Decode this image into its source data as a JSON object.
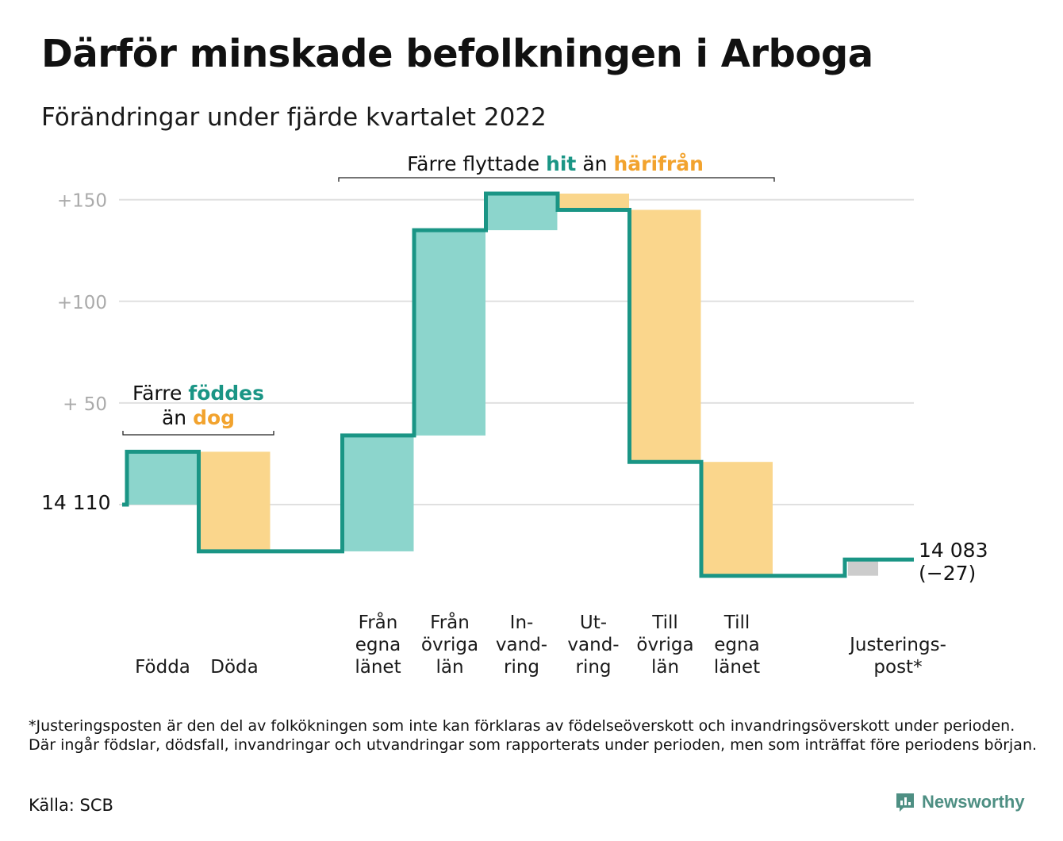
{
  "title": "Därför minskade befolkningen i Arboga",
  "subtitle": "Förändringar under fjärde kvartalet 2022",
  "colors": {
    "increase_fill": "#8cd5cc",
    "decrease_fill": "#fad68c",
    "adjustment_fill": "#cccccc",
    "line": "#1a9585",
    "teal_text": "#1a9585",
    "orange_text": "#f2a32e",
    "grid": "#e0e0e0",
    "tick_text": "#aaaaaa"
  },
  "chart_data": {
    "type": "waterfall",
    "start_value": 14110,
    "start_label": "14 110",
    "end_label": "14 083",
    "end_change_label": "(−27)",
    "y_tick_labels": [
      "+150",
      "+100",
      "+ 50"
    ],
    "y_ticks": [
      150,
      100,
      50
    ],
    "ylim": [
      -40,
      150
    ],
    "steps": [
      {
        "category": [
          "Födda"
        ],
        "change": 26,
        "kind": "increase"
      },
      {
        "category": [
          "Döda"
        ],
        "change": -49,
        "kind": "decrease"
      },
      {
        "category": [],
        "change": 0,
        "kind": "gap"
      },
      {
        "category": [
          "Från",
          "egna",
          "länet"
        ],
        "change": 57,
        "kind": "increase"
      },
      {
        "category": [
          "Från",
          "övriga",
          "län"
        ],
        "change": 101,
        "kind": "increase"
      },
      {
        "category": [
          "In-",
          "vand-",
          "ring"
        ],
        "change": 18,
        "kind": "increase"
      },
      {
        "category": [
          "Ut-",
          "vand-",
          "ring"
        ],
        "change": -8,
        "kind": "decrease"
      },
      {
        "category": [
          "Till",
          "övriga",
          "län"
        ],
        "change": -124,
        "kind": "decrease"
      },
      {
        "category": [
          "Till",
          "egna",
          "länet"
        ],
        "change": -56,
        "kind": "decrease"
      },
      {
        "category": [],
        "change": 0,
        "kind": "gap"
      },
      {
        "category": [
          "Justerings-",
          "post*"
        ],
        "change": 8,
        "kind": "adjustment"
      }
    ],
    "annotations": {
      "births": {
        "prefix": "Färre ",
        "highlight1": "föddes",
        "line2_prefix": "än ",
        "highlight2": "dog"
      },
      "migration": {
        "prefix": "Färre flyttade ",
        "highlight1": "hit",
        "middle": " än ",
        "highlight2": "härifrån"
      }
    }
  },
  "footnote": "*Justeringsposten är den del av folkökningen som inte kan förklaras av födelseöverskott och invandringsöverskott under perioden. Där ingår födslar, dödsfall, invandringar och utvandringar som rapporterats under perioden, men som inträffat före periodens början.",
  "source": "Källa: SCB",
  "brand": {
    "name": "Newsworthy",
    "icon": "newsworthy-logo-icon"
  }
}
